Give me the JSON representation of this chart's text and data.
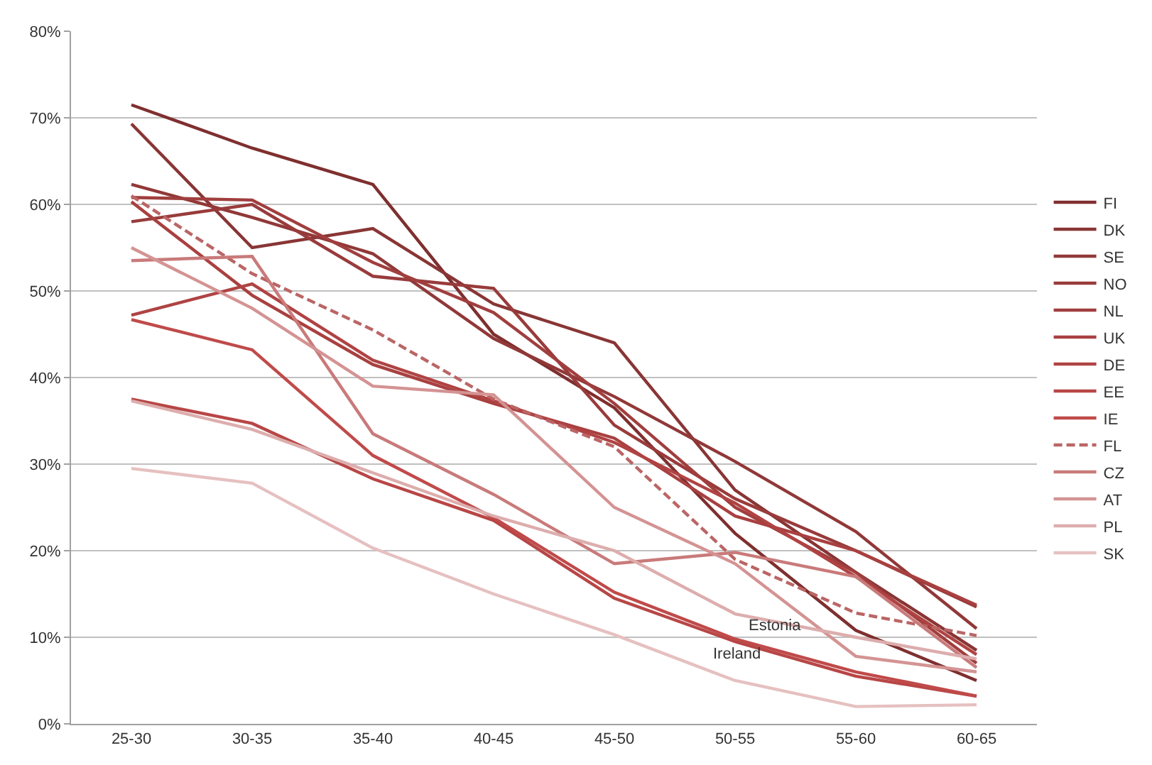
{
  "chart_data": {
    "type": "line",
    "categories": [
      "25-30",
      "30-35",
      "35-40",
      "40-45",
      "45-50",
      "50-55",
      "55-60",
      "60-65"
    ],
    "series": [
      {
        "name": "FI",
        "color": "#7f2f2f",
        "values": [
          71.5,
          66.5,
          62.3,
          45.0,
          36.5,
          22.0,
          10.8,
          5.0
        ]
      },
      {
        "name": "DK",
        "color": "#893535",
        "values": [
          69.3,
          55.0,
          57.2,
          48.5,
          44.0,
          27.0,
          17.5,
          8.5
        ]
      },
      {
        "name": "SE",
        "color": "#913838",
        "values": [
          62.3,
          58.5,
          54.3,
          44.5,
          37.8,
          30.3,
          22.2,
          11.0
        ]
      },
      {
        "name": "NO",
        "color": "#993b3b",
        "values": [
          58.0,
          60.0,
          51.7,
          50.3,
          34.5,
          26.0,
          20.0,
          13.5
        ]
      },
      {
        "name": "NL",
        "color": "#a13e3e",
        "values": [
          60.8,
          60.5,
          53.3,
          47.5,
          37.0,
          25.0,
          17.5,
          7.0
        ]
      },
      {
        "name": "UK",
        "color": "#a94040",
        "values": [
          60.3,
          49.5,
          41.5,
          37.0,
          33.0,
          24.0,
          20.0,
          13.7
        ]
      },
      {
        "name": "DE",
        "color": "#b04343",
        "values": [
          47.2,
          50.8,
          42.0,
          37.3,
          32.5,
          25.5,
          17.0,
          8.0
        ]
      },
      {
        "name": "EE",
        "color": "#b84646",
        "values": [
          37.5,
          34.7,
          28.3,
          23.5,
          14.5,
          9.5,
          5.5,
          3.2
        ]
      },
      {
        "name": "IE",
        "color": "#c04a4a",
        "values": [
          46.7,
          43.2,
          31.0,
          23.8,
          15.2,
          9.8,
          6.0,
          3.2
        ]
      },
      {
        "name": "FL",
        "color": "#bb6565",
        "line_style": "dashed",
        "values": [
          61.0,
          52.0,
          45.5,
          37.5,
          32.0,
          19.0,
          12.8,
          10.2
        ]
      },
      {
        "name": "CZ",
        "color": "#c97a7a",
        "values": [
          53.5,
          54.0,
          33.5,
          26.5,
          18.5,
          19.8,
          17.0,
          6.5
        ]
      },
      {
        "name": "AT",
        "color": "#d49393",
        "values": [
          55.0,
          48.0,
          39.0,
          38.0,
          25.0,
          18.5,
          7.8,
          6.0
        ]
      },
      {
        "name": "PL",
        "color": "#ddadad",
        "values": [
          37.3,
          34.0,
          29.0,
          24.0,
          20.0,
          12.7,
          10.0,
          7.5
        ]
      },
      {
        "name": "SK",
        "color": "#e6c0c0",
        "values": [
          29.5,
          27.8,
          20.3,
          15.0,
          10.3,
          5.0,
          2.0,
          2.2
        ]
      }
    ],
    "ylim": [
      0,
      80
    ],
    "yticks": [
      {
        "value": 0,
        "label": "0%"
      },
      {
        "value": 10,
        "label": "10%"
      },
      {
        "value": 20,
        "label": "20%"
      },
      {
        "value": 30,
        "label": "30%"
      },
      {
        "value": 40,
        "label": "40%"
      },
      {
        "value": 50,
        "label": "50%"
      },
      {
        "value": 60,
        "label": "60%"
      },
      {
        "value": 70,
        "label": "70%"
      },
      {
        "value": 80,
        "label": "80%"
      }
    ],
    "grid": "y",
    "legend": "right",
    "line_style": "solid",
    "marker": "none",
    "annotations": [
      "Estonia",
      "Ireland"
    ]
  }
}
